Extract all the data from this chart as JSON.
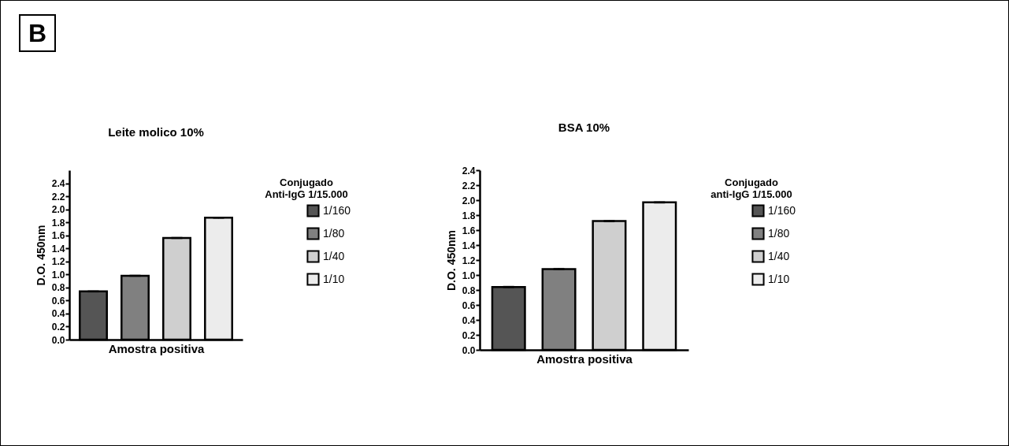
{
  "chart_data": [
    {
      "type": "bar",
      "title": "Leite molico 10%",
      "xlabel": "Amostra positiva",
      "ylabel": "D.O. 450nm",
      "legend_title": "Conjugado\nAnti-IgG 1/15.000",
      "annotations": [
        "B"
      ],
      "categories": [
        null
      ],
      "series": [
        {
          "name": "1/160",
          "color": "#555555",
          "values": [
            0.74
          ],
          "errors": [
            0.01
          ]
        },
        {
          "name": "1/80",
          "color": "#808080",
          "values": [
            0.98
          ],
          "errors": [
            0.01
          ]
        },
        {
          "name": "1/40",
          "color": "#cfcfcf",
          "values": [
            1.56
          ],
          "errors": [
            0.01
          ]
        },
        {
          "name": "1/10",
          "color": "#ececec",
          "values": [
            1.87
          ],
          "errors": [
            0.01
          ]
        }
      ],
      "ylim": [
        0,
        2.6
      ],
      "yticks": [
        {
          "value": 0,
          "label": "0.0"
        },
        0.2,
        0.4,
        0.6,
        0.8,
        {
          "value": 1,
          "label": "1.0"
        },
        1.2,
        1.4,
        1.6,
        1.8,
        {
          "value": 2,
          "label": "2.0"
        },
        2.2,
        2.4
      ],
      "grid": false,
      "legend": "right"
    },
    {
      "type": "bar",
      "title": "BSA 10%",
      "xlabel": "Amostra positiva",
      "ylabel": "D.O. 450nm",
      "legend_title": "Conjugado\nanti-IgG 1/15.000",
      "categories": [
        null
      ],
      "series": [
        {
          "name": "1/160",
          "color": "#555555",
          "values": [
            0.84
          ],
          "errors": [
            0.01
          ]
        },
        {
          "name": "1/80",
          "color": "#808080",
          "values": [
            1.08
          ],
          "errors": [
            0.01
          ]
        },
        {
          "name": "1/40",
          "color": "#cfcfcf",
          "values": [
            1.72
          ],
          "errors": [
            0.01
          ]
        },
        {
          "name": "1/10",
          "color": "#ececec",
          "values": [
            1.97
          ],
          "errors": [
            0.01
          ]
        }
      ],
      "ylim": [
        0,
        2.4
      ],
      "yticks": [
        {
          "value": 0,
          "label": "0.0"
        },
        0.2,
        0.4,
        0.6,
        0.8,
        {
          "value": 1,
          "label": "1.0"
        },
        1.2,
        1.4,
        1.6,
        1.8,
        {
          "value": 2,
          "label": "2.0"
        },
        2.2,
        2.4
      ],
      "grid": false,
      "legend": "right"
    }
  ]
}
